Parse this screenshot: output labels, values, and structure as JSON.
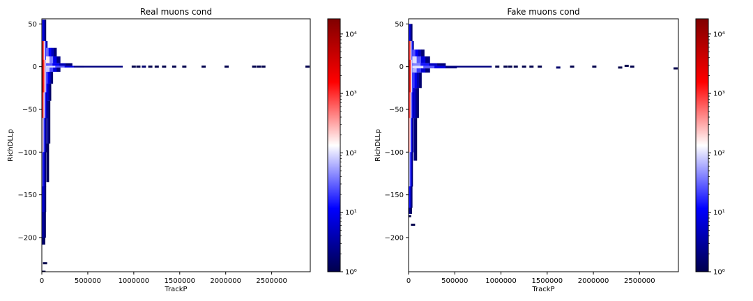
{
  "figure": {
    "background": "#ffffff"
  },
  "chart_data": [
    {
      "type": "heatmap",
      "title": "Real muons cond",
      "xlabel": "TrackP",
      "ylabel": "RichDLLp",
      "xlim": [
        0,
        2920000
      ],
      "ylim": [
        -240,
        56
      ],
      "x_ticks": [
        0,
        500000,
        1000000,
        1500000,
        2000000,
        2500000
      ],
      "x_tick_labels": [
        "0",
        "500000",
        "1000000",
        "1500000",
        "2000000",
        "2500000"
      ],
      "y_ticks": [
        50,
        0,
        -50,
        -100,
        -150,
        -200
      ],
      "y_tick_labels": [
        "50",
        "0",
        "−50",
        "−100",
        "−150",
        "−200"
      ],
      "colorbar": {
        "scale": "log",
        "range": [
          1,
          18000
        ],
        "ticks": [
          1,
          10,
          100,
          1000,
          10000
        ],
        "tick_labels": [
          "10⁰",
          "10¹",
          "10²",
          "10³",
          "10⁴"
        ],
        "colormap": [
          "#00004c",
          "#0000ff",
          "#ffffff",
          "#ff0000",
          "#800000"
        ]
      },
      "vertical_band": [
        {
          "y_top": 55,
          "y_bot": 30,
          "w": 45000,
          "log": 1.3
        },
        {
          "y_top": 30,
          "y_bot": 8,
          "w": 60000,
          "log": 3.6
        },
        {
          "y_top": 8,
          "y_bot": -30,
          "w": 70000,
          "log": 3.9
        },
        {
          "y_top": -30,
          "y_bot": -60,
          "w": 60000,
          "log": 3.3
        },
        {
          "y_top": -60,
          "y_bot": -100,
          "w": 50000,
          "log": 2.4
        },
        {
          "y_top": -100,
          "y_bot": -140,
          "w": 45000,
          "log": 1.6
        },
        {
          "y_top": -140,
          "y_bot": -170,
          "w": 45000,
          "log": 1.2
        },
        {
          "y_top": -170,
          "y_bot": -200,
          "w": 42000,
          "log": 0.8
        },
        {
          "y_top": -200,
          "y_bot": -208,
          "w": 35000,
          "log": 0.4
        }
      ],
      "arms": [
        {
          "x0": 45000,
          "x1": 160000,
          "y_top": 22,
          "y_bot": 12,
          "log": 1.5
        },
        {
          "x0": 45000,
          "x1": 200000,
          "y_top": 12,
          "y_bot": 4,
          "log": 2.2
        },
        {
          "x0": 45000,
          "x1": 330000,
          "y_top": 4,
          "y_bot": 1,
          "log": 1.4
        },
        {
          "x0": 45000,
          "x1": 450000,
          "y_top": 1,
          "y_bot": -1,
          "log": 2.0
        },
        {
          "x0": 45000,
          "x1": 200000,
          "y_top": -1,
          "y_bot": -6,
          "log": 1.9
        },
        {
          "x0": 45000,
          "x1": 120000,
          "y_top": -6,
          "y_bot": -20,
          "log": 1.4
        },
        {
          "x0": 55000,
          "x1": 100000,
          "y_top": -20,
          "y_bot": -40,
          "log": 0.9
        },
        {
          "x0": 55000,
          "x1": 90000,
          "y_top": -40,
          "y_bot": -90,
          "log": 0.5
        },
        {
          "x0": 50000,
          "x1": 75000,
          "y_top": -90,
          "y_bot": -135,
          "log": 0.2
        }
      ],
      "dense_segments": [
        {
          "x0": 450000,
          "x1": 880000,
          "y": 0,
          "log": 0.3
        }
      ],
      "sparse_points": [
        {
          "x": 1000000,
          "y": 0,
          "log": 0
        },
        {
          "x": 1050000,
          "y": 0,
          "log": 0
        },
        {
          "x": 1110000,
          "y": 0,
          "log": 0.2
        },
        {
          "x": 1180000,
          "y": 0,
          "log": 0
        },
        {
          "x": 1250000,
          "y": 0,
          "log": 0
        },
        {
          "x": 1330000,
          "y": 0,
          "log": 0
        },
        {
          "x": 1440000,
          "y": 0,
          "log": 0
        },
        {
          "x": 1550000,
          "y": 0,
          "log": 0
        },
        {
          "x": 1760000,
          "y": 0,
          "log": 0
        },
        {
          "x": 2010000,
          "y": 0,
          "log": 0
        },
        {
          "x": 2310000,
          "y": 0,
          "log": 0
        },
        {
          "x": 2360000,
          "y": 0,
          "log": 0
        },
        {
          "x": 2410000,
          "y": 0,
          "log": 0
        },
        {
          "x": 2890000,
          "y": 0,
          "log": 0
        },
        {
          "x": 35000,
          "y": -230,
          "log": 0
        },
        {
          "x": 18000,
          "y": -240,
          "log": 0
        }
      ]
    },
    {
      "type": "heatmap",
      "title": "Fake muons cond",
      "xlabel": "TrackP",
      "ylabel": "RichDLLp",
      "xlim": [
        0,
        2920000
      ],
      "ylim": [
        -240,
        56
      ],
      "x_ticks": [
        0,
        500000,
        1000000,
        1500000,
        2000000,
        2500000
      ],
      "x_tick_labels": [
        "0",
        "500000",
        "1000000",
        "1500000",
        "2000000",
        "2500000"
      ],
      "y_ticks": [
        50,
        0,
        -50,
        -100,
        -150,
        -200
      ],
      "y_tick_labels": [
        "50",
        "0",
        "−50",
        "−100",
        "−150",
        "−200"
      ],
      "colorbar": {
        "scale": "log",
        "range": [
          1,
          18000
        ],
        "ticks": [
          1,
          10,
          100,
          1000,
          10000
        ],
        "tick_labels": [
          "10⁰",
          "10¹",
          "10²",
          "10³",
          "10⁴"
        ],
        "colormap": [
          "#00004c",
          "#0000ff",
          "#ffffff",
          "#ff0000",
          "#800000"
        ]
      },
      "vertical_band": [
        {
          "y_top": 50,
          "y_bot": 30,
          "w": 40000,
          "log": 1.2
        },
        {
          "y_top": 30,
          "y_bot": 8,
          "w": 55000,
          "log": 3.5
        },
        {
          "y_top": 8,
          "y_bot": -30,
          "w": 60000,
          "log": 3.9
        },
        {
          "y_top": -30,
          "y_bot": -60,
          "w": 55000,
          "log": 3.4
        },
        {
          "y_top": -60,
          "y_bot": -100,
          "w": 50000,
          "log": 2.8
        },
        {
          "y_top": -100,
          "y_bot": -140,
          "w": 45000,
          "log": 2.1
        },
        {
          "y_top": -140,
          "y_bot": -165,
          "w": 40000,
          "log": 1.4
        },
        {
          "y_top": -165,
          "y_bot": -172,
          "w": 35000,
          "log": 0.5
        }
      ],
      "arms": [
        {
          "x0": 40000,
          "x1": 170000,
          "y_top": 20,
          "y_bot": 12,
          "log": 1.4
        },
        {
          "x0": 40000,
          "x1": 230000,
          "y_top": 12,
          "y_bot": 4,
          "log": 2.0
        },
        {
          "x0": 40000,
          "x1": 400000,
          "y_top": 4,
          "y_bot": 1,
          "log": 1.6
        },
        {
          "x0": 40000,
          "x1": 520000,
          "y_top": 1,
          "y_bot": -2,
          "log": 2.0
        },
        {
          "x0": 40000,
          "x1": 230000,
          "y_top": -2,
          "y_bot": -7,
          "log": 1.8
        },
        {
          "x0": 40000,
          "x1": 140000,
          "y_top": -7,
          "y_bot": -25,
          "log": 1.3
        },
        {
          "x0": 50000,
          "x1": 110000,
          "y_top": -25,
          "y_bot": -60,
          "log": 0.8
        },
        {
          "x0": 55000,
          "x1": 90000,
          "y_top": -60,
          "y_bot": -110,
          "log": 0.4
        }
      ],
      "dense_segments": [
        {
          "x0": 520000,
          "x1": 900000,
          "y": 0,
          "log": 0.3
        }
      ],
      "sparse_points": [
        {
          "x": 960000,
          "y": 0,
          "log": 0
        },
        {
          "x": 1050000,
          "y": 0,
          "log": 0
        },
        {
          "x": 1100000,
          "y": 0,
          "log": 0
        },
        {
          "x": 1160000,
          "y": 0,
          "log": 0
        },
        {
          "x": 1250000,
          "y": 0,
          "log": 0
        },
        {
          "x": 1330000,
          "y": 0,
          "log": 0
        },
        {
          "x": 1420000,
          "y": 0,
          "log": 0
        },
        {
          "x": 1620000,
          "y": -1,
          "log": 0.2
        },
        {
          "x": 1770000,
          "y": 0,
          "log": 0
        },
        {
          "x": 2010000,
          "y": 0,
          "log": 0
        },
        {
          "x": 2290000,
          "y": -1,
          "log": 0
        },
        {
          "x": 2360000,
          "y": 1,
          "log": 0
        },
        {
          "x": 2420000,
          "y": 0,
          "log": 0
        },
        {
          "x": 2890000,
          "y": -2,
          "log": 0
        },
        {
          "x": 5000,
          "y": -175,
          "log": 0
        },
        {
          "x": 48000,
          "y": -185,
          "log": 0
        }
      ]
    }
  ]
}
